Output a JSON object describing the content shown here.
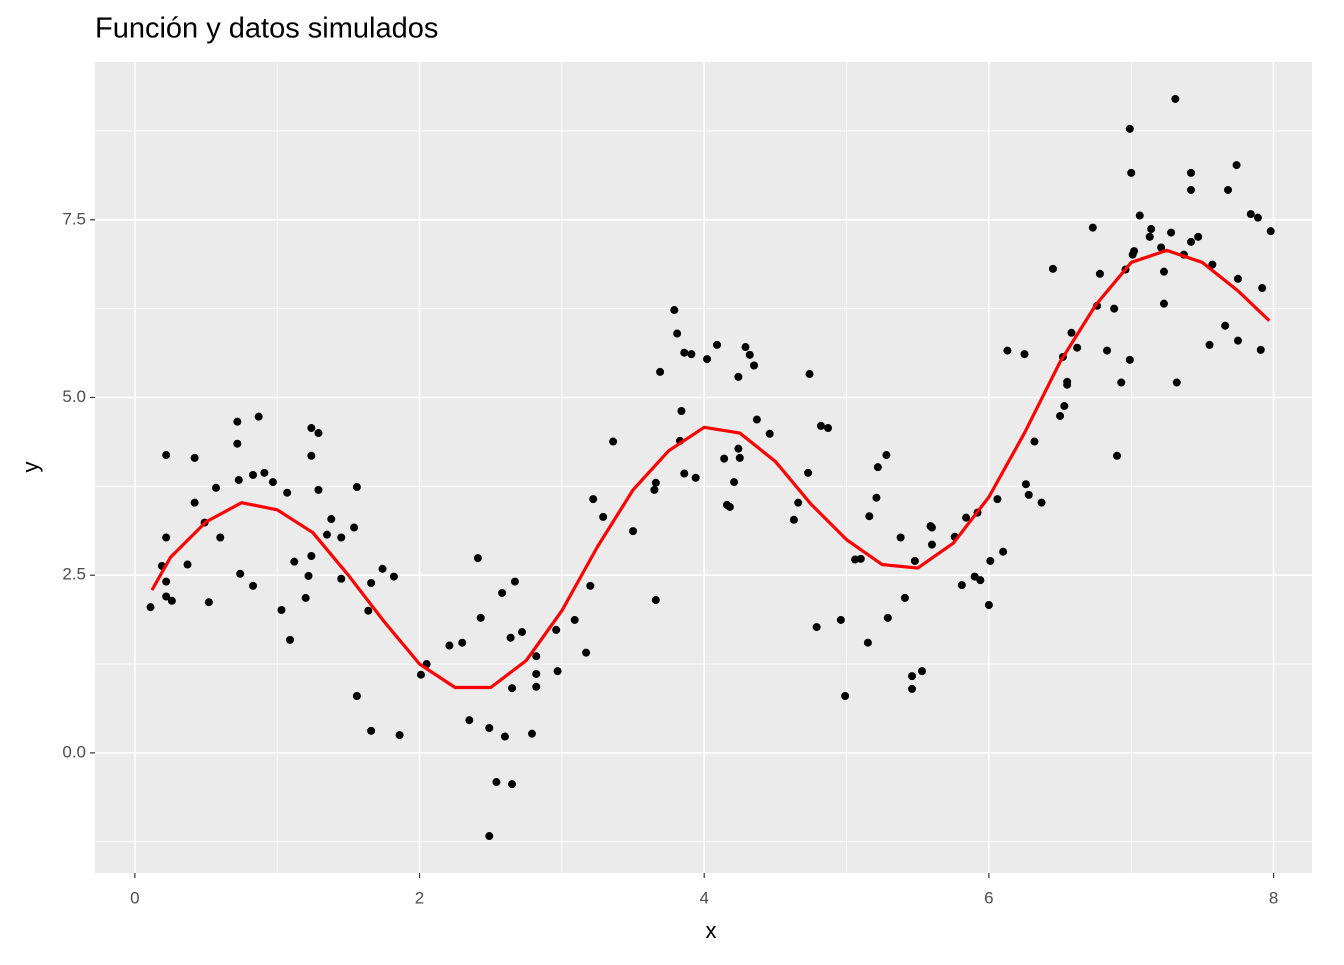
{
  "chart_data": {
    "type": "scatter",
    "title": "Función y datos simulados",
    "x_label": "x",
    "y_label": "y",
    "xlim": [
      -0.28,
      8.27
    ],
    "ylim": [
      -1.69,
      9.72
    ],
    "xticks": [
      0,
      2,
      4,
      6,
      8
    ],
    "yticks": [
      {
        "value": 0,
        "label": "0.0"
      },
      2.5,
      {
        "value": 5,
        "label": "5.0"
      },
      7.5
    ],
    "x_minor_breaks": [
      1,
      3,
      5,
      7
    ],
    "y_minor_breaks": [
      -1.25,
      1.25,
      3.75,
      6.25,
      8.75
    ],
    "grid": true,
    "panel_color": "#ebebeb",
    "series": [
      {
        "style": "points",
        "color": "#000000",
        "x": [
          0.11,
          0.19,
          0.22,
          0.22,
          0.22,
          0.22,
          0.26,
          0.37,
          0.42,
          0.42,
          0.49,
          0.52,
          0.57,
          0.6,
          0.72,
          0.72,
          0.73,
          0.74,
          0.83,
          0.83,
          0.87,
          0.91,
          0.97,
          1.03,
          1.07,
          1.09,
          1.12,
          1.2,
          1.22,
          1.24,
          1.24,
          1.24,
          1.29,
          1.29,
          1.35,
          1.38,
          1.45,
          1.45,
          1.54,
          1.56,
          1.56,
          1.64,
          1.66,
          1.66,
          1.74,
          1.82,
          1.86,
          2.01,
          2.05,
          2.21,
          2.3,
          2.35,
          2.41,
          2.43,
          2.49,
          2.49,
          2.54,
          2.58,
          2.6,
          2.64,
          2.65,
          2.65,
          2.67,
          2.72,
          2.79,
          2.82,
          2.82,
          2.82,
          2.96,
          2.97,
          3.09,
          3.17,
          3.2,
          3.22,
          3.29,
          3.36,
          3.5,
          3.66,
          3.65,
          3.66,
          3.69,
          3.79,
          3.81,
          3.83,
          3.84,
          3.86,
          3.86,
          3.91,
          3.94,
          4.02,
          4.09,
          4.14,
          4.16,
          4.18,
          4.21,
          4.24,
          4.24,
          4.25,
          4.29,
          4.32,
          4.35,
          4.37,
          4.46,
          4.63,
          4.66,
          4.73,
          4.74,
          4.79,
          4.82,
          4.87,
          4.96,
          4.99,
          5.06,
          5.1,
          5.16,
          5.15,
          5.21,
          5.22,
          5.28,
          5.29,
          5.38,
          5.41,
          5.46,
          5.46,
          5.48,
          5.53,
          5.59,
          5.6,
          5.6,
          5.76,
          5.81,
          5.84,
          5.9,
          5.92,
          5.94,
          6.0,
          6.01,
          6.06,
          6.1,
          6.13,
          6.25,
          6.26,
          6.28,
          6.32,
          6.37,
          6.45,
          6.5,
          6.52,
          6.53,
          6.55,
          6.55,
          6.58,
          6.62,
          6.73,
          6.76,
          6.78,
          6.83,
          6.88,
          6.9,
          6.93,
          6.96,
          6.99,
          6.99,
          7.0,
          7.01,
          7.02,
          7.06,
          7.13,
          7.14,
          7.21,
          7.23,
          7.23,
          7.28,
          7.31,
          7.32,
          7.37,
          7.42,
          7.42,
          7.42,
          7.47,
          7.55,
          7.57,
          7.66,
          7.68,
          7.74,
          7.75,
          7.75,
          7.84,
          7.89,
          7.91,
          7.92,
          7.98
        ],
        "values": [
          2.05,
          2.63,
          3.03,
          4.19,
          2.2,
          2.41,
          2.14,
          2.65,
          4.15,
          3.52,
          3.24,
          2.12,
          3.73,
          3.03,
          4.66,
          4.35,
          3.84,
          2.52,
          3.91,
          2.35,
          4.73,
          3.94,
          3.81,
          2.01,
          3.66,
          1.59,
          2.69,
          2.18,
          2.49,
          2.77,
          4.18,
          4.57,
          4.5,
          3.7,
          3.07,
          3.29,
          3.03,
          2.45,
          3.17,
          3.74,
          0.8,
          2.0,
          2.39,
          0.31,
          2.59,
          2.48,
          0.25,
          1.1,
          1.25,
          1.51,
          1.55,
          0.46,
          2.74,
          1.9,
          -1.17,
          0.35,
          -0.41,
          2.25,
          0.23,
          1.62,
          -0.44,
          0.91,
          2.41,
          1.7,
          0.27,
          1.36,
          1.11,
          0.93,
          1.73,
          1.15,
          1.87,
          1.41,
          2.35,
          3.57,
          3.32,
          4.38,
          3.12,
          2.15,
          3.7,
          3.8,
          5.36,
          6.23,
          5.9,
          4.39,
          4.81,
          3.93,
          5.63,
          5.61,
          3.87,
          5.54,
          5.74,
          4.14,
          3.49,
          3.46,
          3.81,
          5.29,
          4.28,
          4.15,
          5.71,
          5.6,
          5.45,
          4.69,
          4.49,
          3.28,
          3.52,
          3.94,
          5.33,
          1.77,
          4.6,
          4.57,
          1.87,
          0.8,
          2.72,
          2.73,
          3.33,
          1.55,
          3.59,
          4.02,
          4.19,
          1.9,
          3.03,
          2.18,
          1.08,
          0.9,
          2.7,
          1.15,
          3.19,
          3.17,
          2.93,
          3.04,
          2.36,
          3.31,
          2.48,
          3.38,
          2.43,
          2.08,
          2.7,
          3.57,
          2.83,
          5.66,
          5.61,
          3.78,
          3.63,
          4.38,
          3.52,
          6.81,
          4.74,
          5.57,
          4.88,
          5.18,
          5.22,
          5.91,
          5.7,
          7.39,
          6.29,
          6.74,
          5.66,
          6.25,
          4.18,
          5.21,
          6.8,
          5.53,
          8.78,
          8.16,
          7.01,
          7.06,
          7.56,
          7.26,
          7.37,
          7.11,
          6.77,
          6.32,
          7.32,
          9.2,
          5.21,
          7.01,
          7.19,
          7.92,
          8.16,
          7.26,
          5.74,
          6.87,
          6.01,
          7.92,
          8.27,
          6.67,
          5.8,
          7.58,
          7.53,
          5.67,
          6.54,
          7.34
        ]
      },
      {
        "style": "line",
        "color": "#ff0000",
        "x": [
          0.12,
          0.25,
          0.5,
          0.75,
          1.0,
          1.25,
          1.5,
          1.75,
          2.0,
          2.25,
          2.5,
          2.75,
          3.0,
          3.25,
          3.5,
          3.75,
          4.0,
          4.25,
          4.5,
          4.75,
          5.0,
          5.25,
          5.5,
          5.75,
          6.0,
          6.25,
          6.5,
          6.75,
          7.0,
          7.25,
          7.5,
          7.75,
          7.97
        ],
        "values": [
          2.29,
          2.75,
          3.25,
          3.52,
          3.42,
          3.1,
          2.5,
          1.85,
          1.25,
          0.92,
          0.92,
          1.3,
          2.0,
          2.9,
          3.7,
          4.25,
          4.58,
          4.5,
          4.1,
          3.5,
          3.0,
          2.65,
          2.6,
          2.95,
          3.6,
          4.5,
          5.5,
          6.3,
          6.9,
          7.07,
          6.9,
          6.5,
          6.08
        ]
      }
    ]
  }
}
